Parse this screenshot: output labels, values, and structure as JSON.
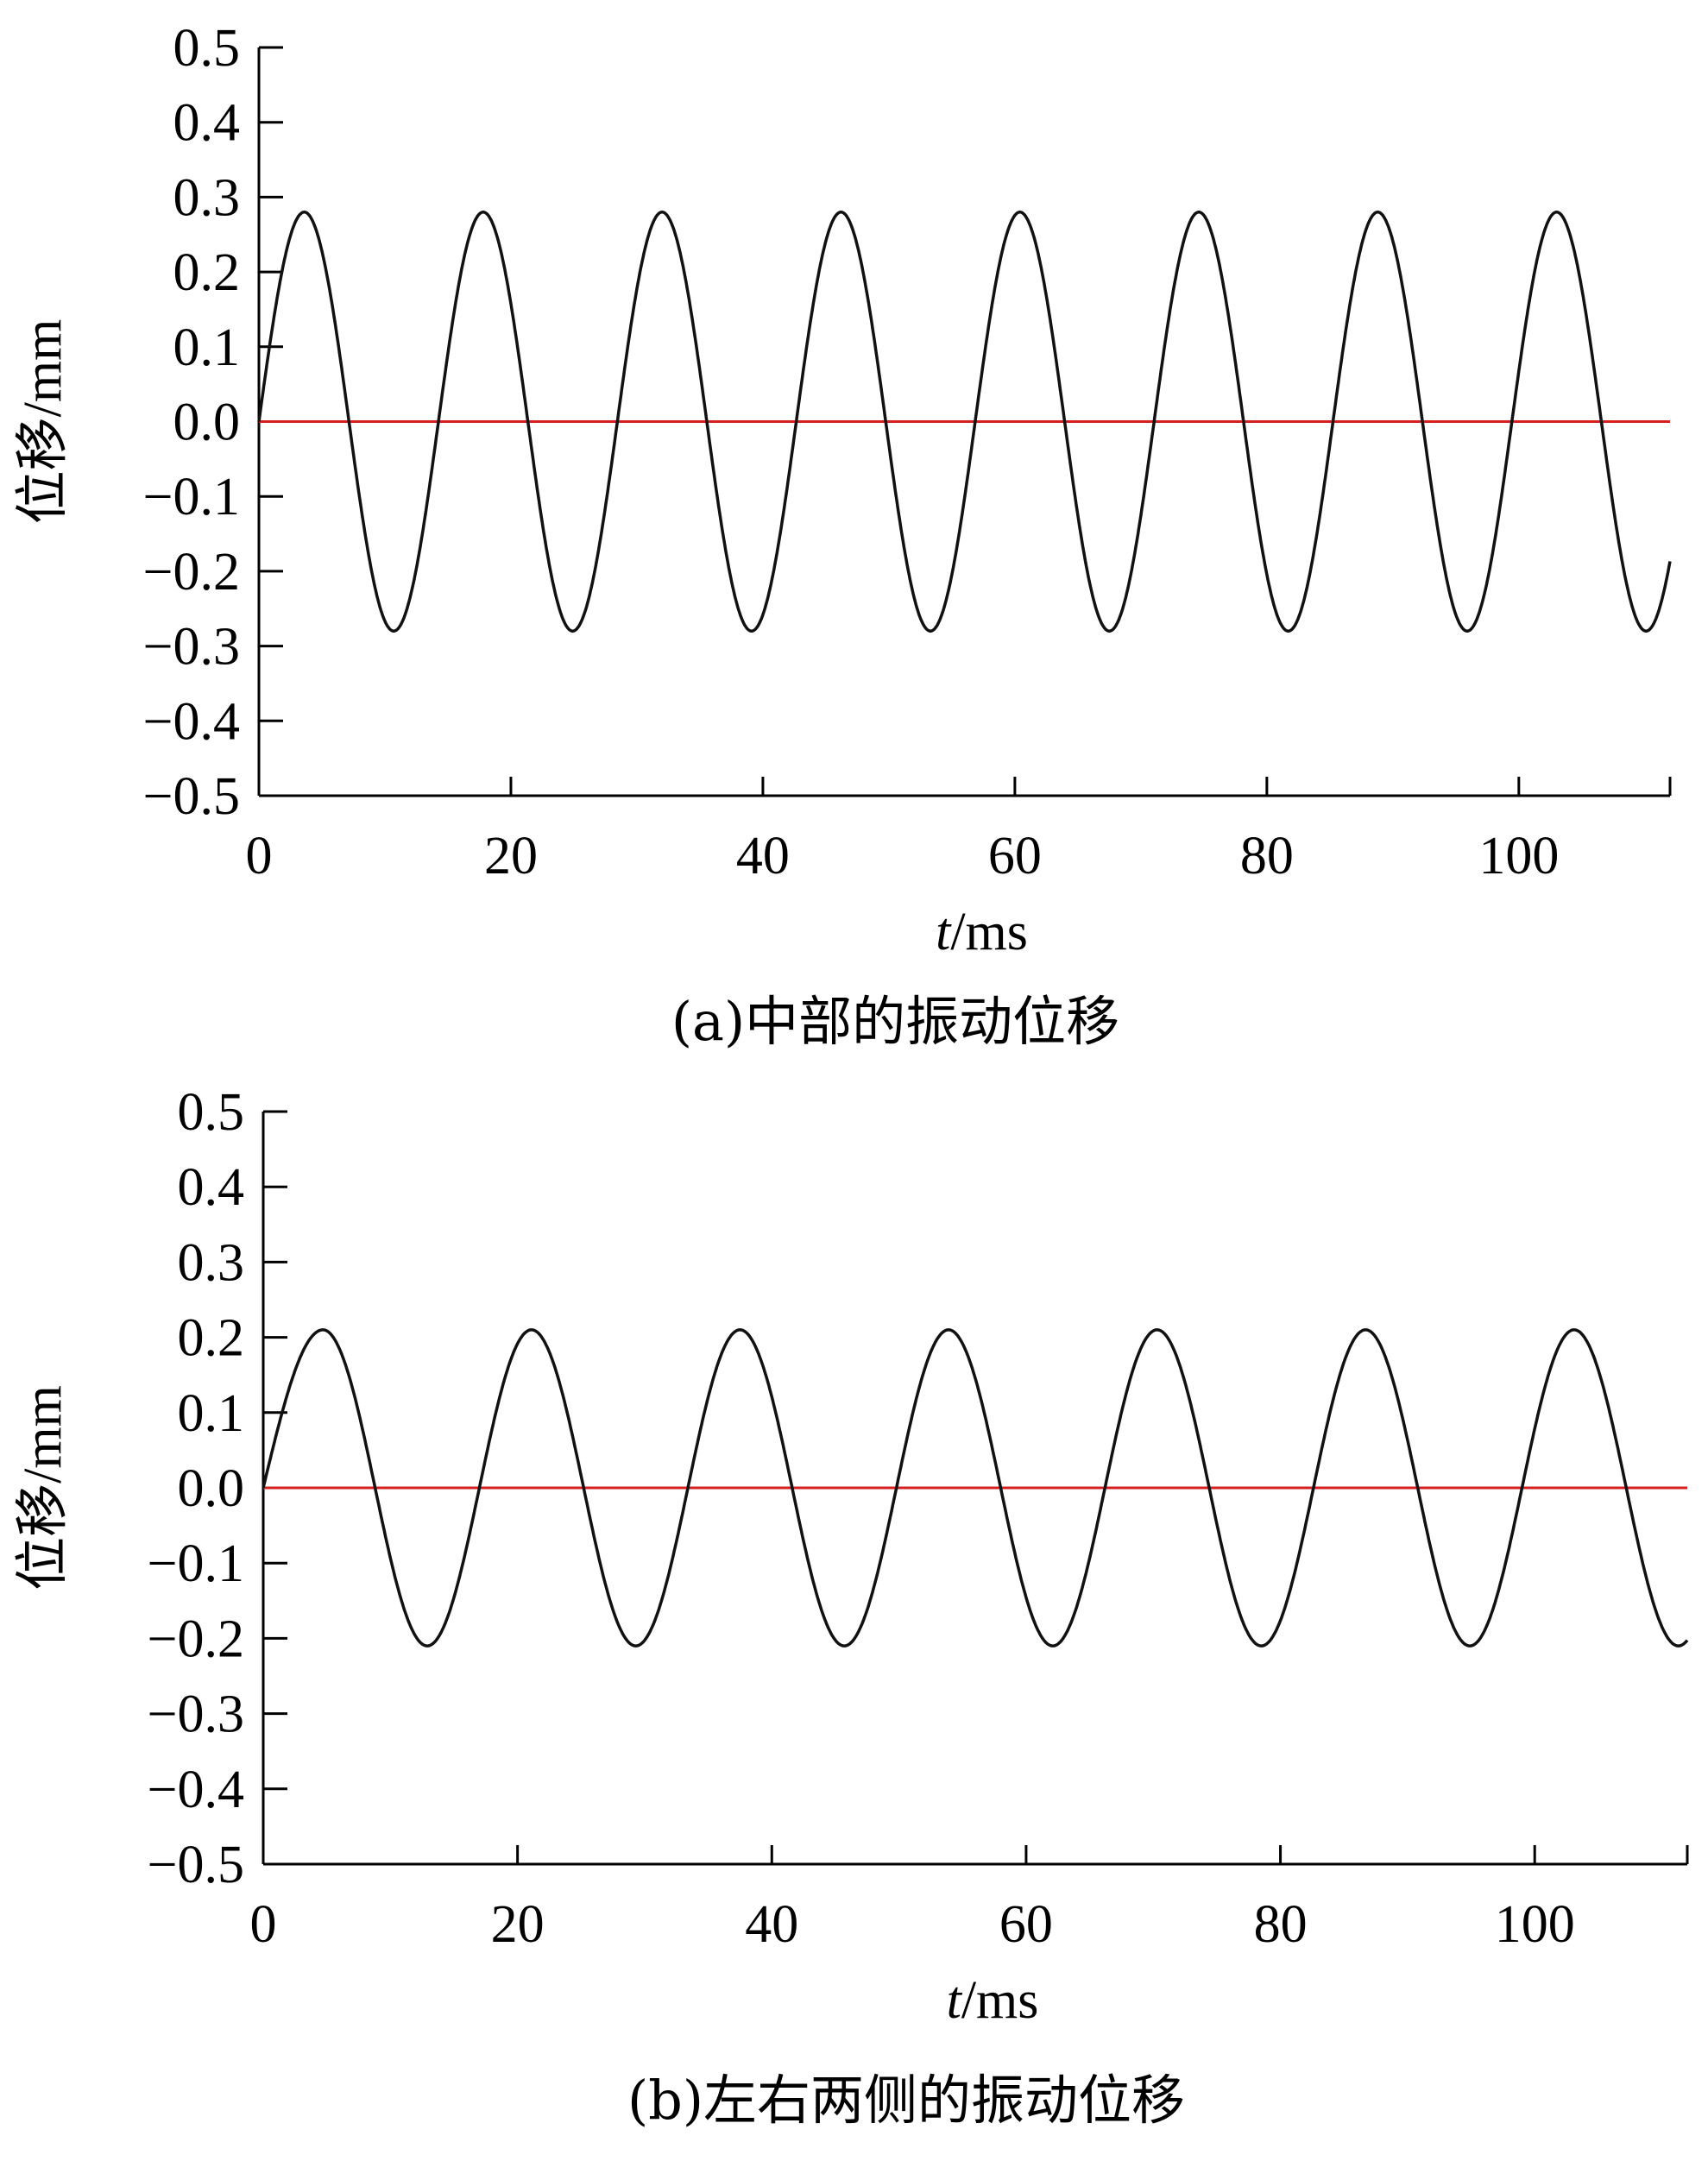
{
  "chart_data": [
    {
      "type": "line",
      "caption": "(a)中部的振动位移",
      "xlabel_italic": "t",
      "xlabel_unit": "/ms",
      "ylabel": "位移/mm",
      "xlim": [
        0,
        112
      ],
      "ylim": [
        -0.5,
        0.5
      ],
      "xticks": [
        0,
        20,
        40,
        60,
        80,
        100
      ],
      "yticks": [
        0.5,
        0.4,
        0.3,
        0.2,
        0.1,
        0.0,
        -0.1,
        -0.2,
        -0.3,
        -0.4,
        -0.5
      ],
      "ytick_labels": [
        "0.5",
        "0.4",
        "0.3",
        "0.2",
        "0.1",
        "0.0",
        "−0.1",
        "−0.2",
        "−0.3",
        "−0.4",
        "−0.5"
      ],
      "reference_line": {
        "y": 0.0,
        "color": "#d62020"
      },
      "series": [
        {
          "color": "#111111",
          "amplitude": 0.28,
          "period_ms": 14.2,
          "peaks_ms": [
            3.6,
            17.7,
            32.0,
            46.2,
            60.7,
            75.0,
            89.5,
            103.8
          ]
        }
      ],
      "grid": false
    },
    {
      "type": "line",
      "caption": "(b)左右两侧的振动位移",
      "xlabel_italic": "t",
      "xlabel_unit": "/ms",
      "ylabel": "位移/mm",
      "xlim": [
        0,
        112
      ],
      "ylim": [
        -0.5,
        0.5
      ],
      "xticks": [
        0,
        20,
        40,
        60,
        80,
        100
      ],
      "yticks": [
        0.5,
        0.4,
        0.3,
        0.2,
        0.1,
        0.0,
        -0.1,
        -0.2,
        -0.3,
        -0.4,
        -0.5
      ],
      "ytick_labels": [
        "0.5",
        "0.4",
        "0.3",
        "0.2",
        "0.1",
        "0.0",
        "−0.1",
        "−0.2",
        "−0.3",
        "−0.4",
        "−0.5"
      ],
      "reference_line": {
        "y": 0.0,
        "color": "#d62020"
      },
      "series": [
        {
          "color": "#111111",
          "amplitude": 0.21,
          "period_ms": 16.4,
          "peaks_ms": [
            4.7,
            21.1,
            37.0,
            53.5,
            69.8,
            86.0,
            102.3
          ]
        }
      ],
      "grid": false
    }
  ]
}
